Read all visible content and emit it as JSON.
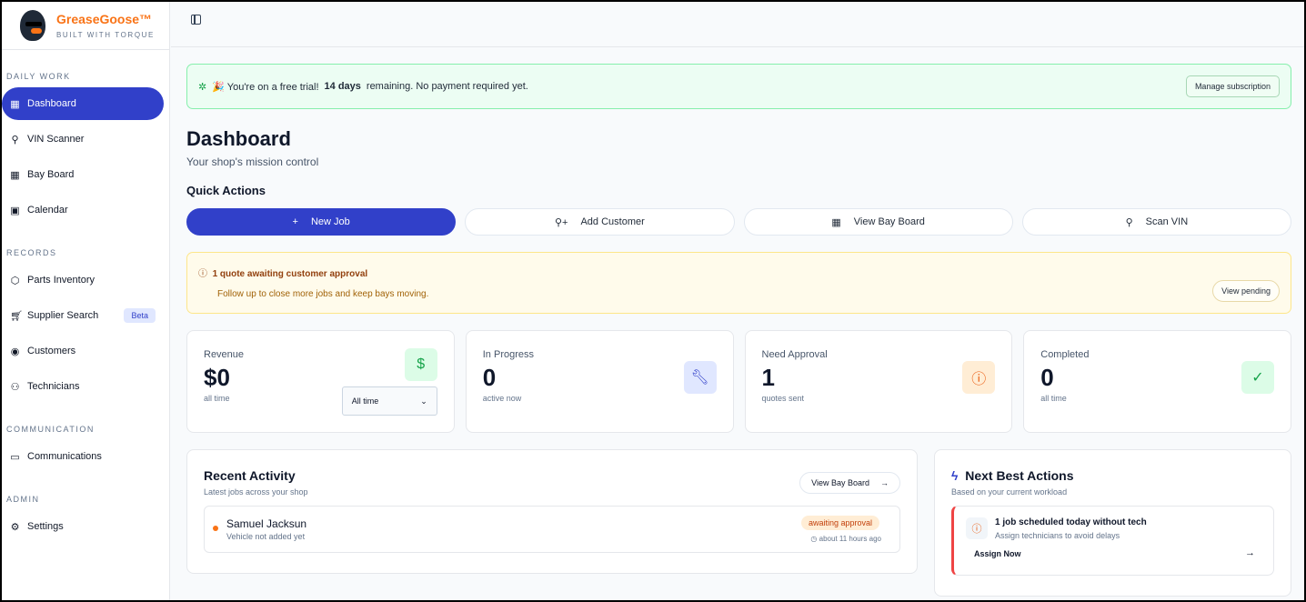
{
  "brand": {
    "name": "GreaseGoose™",
    "tagline": "BUILT WITH TORQUE"
  },
  "sidebar": {
    "sections": [
      {
        "label": "DAILY WORK",
        "items": [
          {
            "label": "Dashboard",
            "icon": "grid-icon"
          },
          {
            "label": "VIN Scanner",
            "icon": "search-icon"
          },
          {
            "label": "Bay Board",
            "icon": "grid-icon"
          },
          {
            "label": "Calendar",
            "icon": "calendar-icon"
          }
        ]
      },
      {
        "label": "RECORDS",
        "items": [
          {
            "label": "Parts Inventory",
            "icon": "package-icon"
          },
          {
            "label": "Supplier Search",
            "icon": "cart-icon",
            "badge": "Beta"
          },
          {
            "label": "Customers",
            "icon": "user-circle-icon"
          },
          {
            "label": "Technicians",
            "icon": "users-icon"
          }
        ]
      },
      {
        "label": "COMMUNICATION",
        "items": [
          {
            "label": "Communications",
            "icon": "message-icon"
          }
        ]
      },
      {
        "label": "ADMIN",
        "items": [
          {
            "label": "Settings",
            "icon": "gear-icon"
          }
        ]
      }
    ]
  },
  "trial": {
    "prefix": "🎉 You're on a free trial!",
    "days": "14 days",
    "suffix": "remaining. No payment required yet.",
    "button": "Manage subscription"
  },
  "page": {
    "title": "Dashboard",
    "subtitle": "Your shop's mission control",
    "quick_actions_title": "Quick Actions"
  },
  "quick_actions": [
    {
      "label": "New Job",
      "icon": "plus-icon"
    },
    {
      "label": "Add Customer",
      "icon": "user-plus-icon"
    },
    {
      "label": "View Bay Board",
      "icon": "grid-icon"
    },
    {
      "label": "Scan VIN",
      "icon": "search-icon"
    }
  ],
  "alert": {
    "title": "1 quote awaiting customer approval",
    "desc": "Follow up to close more jobs and keep bays moving.",
    "button": "View pending"
  },
  "stats": [
    {
      "label": "Revenue",
      "value": "$0",
      "sub": "all time",
      "icon": "dollar-icon",
      "select": "All time"
    },
    {
      "label": "In Progress",
      "value": "0",
      "sub": "active now",
      "icon": "wrench-icon"
    },
    {
      "label": "Need Approval",
      "value": "1",
      "sub": "quotes sent",
      "icon": "alert-circle-icon"
    },
    {
      "label": "Completed",
      "value": "0",
      "sub": "all time",
      "icon": "check-circle-icon"
    }
  ],
  "recent": {
    "title": "Recent Activity",
    "subtitle": "Latest jobs across your shop",
    "button": "View Bay Board",
    "items": [
      {
        "name": "Samuel Jacksun",
        "vehicle": "Vehicle not added yet",
        "status": "awaiting approval",
        "time": "about 11 hours ago"
      }
    ]
  },
  "nba": {
    "title": "Next Best Actions",
    "subtitle": "Based on your current workload",
    "items": [
      {
        "title": "1 job scheduled today without tech",
        "desc": "Assign technicians to avoid delays",
        "action": "Assign Now"
      }
    ]
  },
  "colors": {
    "primary": "#3140c9",
    "brand": "#f97316",
    "success": "#16a34a",
    "warning": "#ea580c"
  }
}
